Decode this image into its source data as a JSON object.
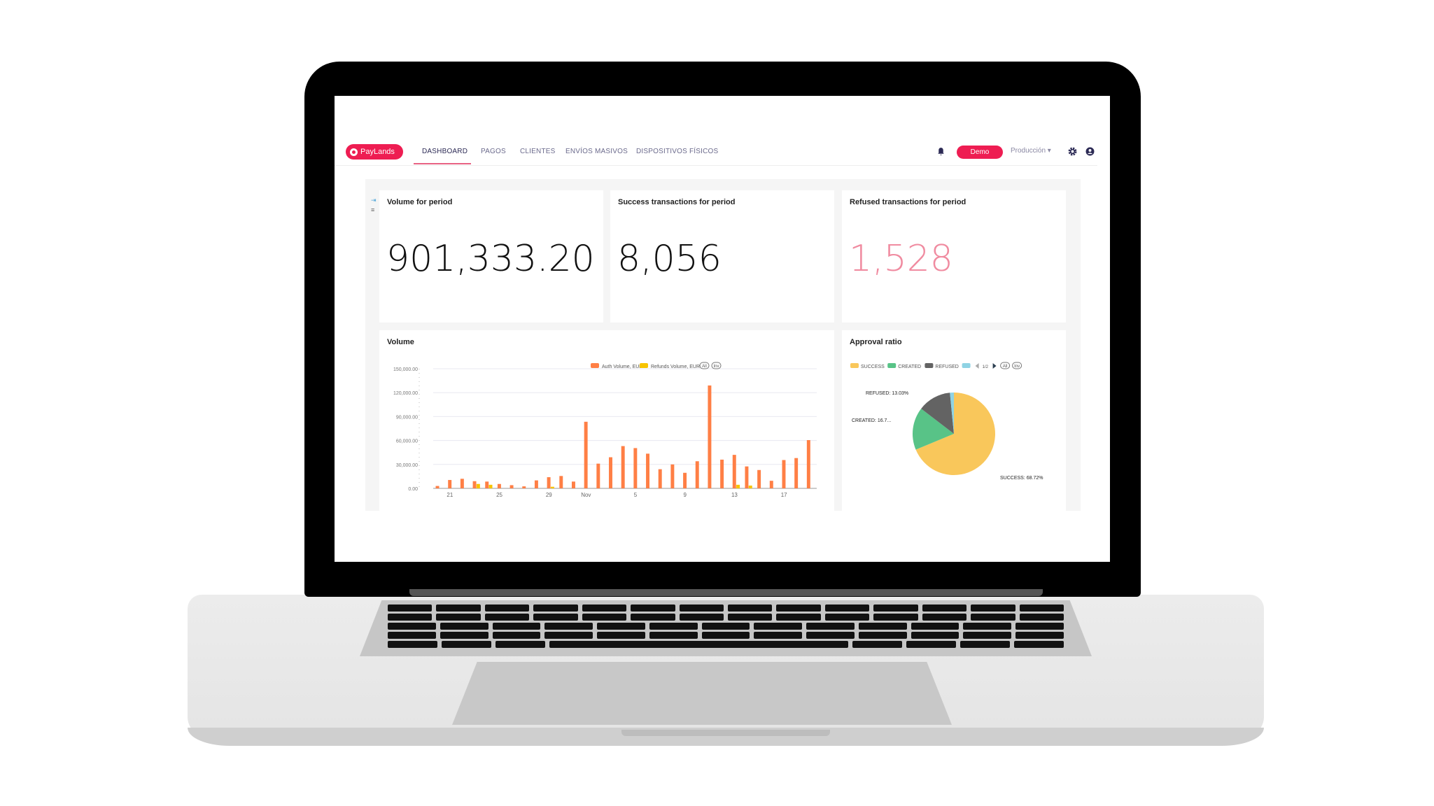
{
  "nav": {
    "logo": "PayLands",
    "tabs": [
      "DASHBOARD",
      "PAGOS",
      "CLIENTES",
      "ENVÍOS MASIVOS",
      "DISPOSITIVOS FÍSICOS"
    ],
    "active": "DASHBOARD",
    "demo": "Demo",
    "environment": "Producción ▾",
    "icons": [
      "bell-icon",
      "gear-icon",
      "user-icon"
    ]
  },
  "colors": {
    "brand": "#ee1d52",
    "auth": "#ff7f45",
    "refunds": "#f7c400",
    "success": "#f9c75b",
    "created": "#58c387",
    "refused": "#636363",
    "other": "#8fd3e4"
  },
  "kpis": [
    {
      "title": "Volume for period",
      "value": "901,333.20",
      "color": "#111111"
    },
    {
      "title": "Success transactions for period",
      "value": "8,056",
      "color": "#111111"
    },
    {
      "title": "Refused transactions for period",
      "value": "1,528",
      "color": "#f08ba0"
    }
  ],
  "chart_data": [
    {
      "type": "bar",
      "title": "Volume",
      "legend": [
        "Auth Volume, EUR",
        "Refunds Volume, EUR"
      ],
      "legend_buttons": [
        "All",
        "Inv"
      ],
      "legend_placement": "top-right",
      "ylim": [
        0,
        150000
      ],
      "yticks": [
        "0.00",
        "30,000.00",
        "60,000.00",
        "90,000.00",
        "120,000.00",
        "150,000.00"
      ],
      "xtick_labels": {
        "1": "21",
        "5": "25",
        "9": "29",
        "12": "Nov",
        "16": "5",
        "20": "9",
        "24": "13",
        "28": "17"
      },
      "x": [
        "Oct 20",
        "Oct 21",
        "Oct 22",
        "Oct 23",
        "Oct 24",
        "Oct 25",
        "Oct 26",
        "Oct 27",
        "Oct 28",
        "Oct 29",
        "Oct 30",
        "Oct 31",
        "Nov 1",
        "Nov 2",
        "Nov 3",
        "Nov 4",
        "Nov 5",
        "Nov 6",
        "Nov 7",
        "Nov 8",
        "Nov 9",
        "Nov 10",
        "Nov 11",
        "Nov 12",
        "Nov 13",
        "Nov 14",
        "Nov 15",
        "Nov 16",
        "Nov 17",
        "Nov 18",
        "Nov 19"
      ],
      "series": [
        {
          "name": "Auth Volume, EUR",
          "values": [
            3000,
            10500,
            12000,
            9000,
            8500,
            5500,
            4000,
            2500,
            10000,
            14000,
            15500,
            8500,
            83500,
            31000,
            39000,
            53000,
            50500,
            43500,
            24000,
            30000,
            19500,
            34000,
            129000,
            36000,
            42000,
            27500,
            23000,
            9500,
            35500,
            38000,
            60500
          ]
        },
        {
          "name": "Refunds Volume, EUR",
          "values": [
            0,
            0,
            0,
            5500,
            4500,
            0,
            0,
            0,
            0,
            2000,
            0,
            0,
            0,
            0,
            0,
            0,
            0,
            0,
            0,
            0,
            0,
            0,
            0,
            0,
            4500,
            3500,
            0,
            0,
            0,
            0,
            0
          ]
        }
      ]
    },
    {
      "type": "pie",
      "title": "Approval ratio",
      "legend": [
        "SUCCESS",
        "CREATED",
        "REFUSED",
        ""
      ],
      "legend_pager": "1/2",
      "legend_buttons": [
        "All",
        "Inv"
      ],
      "slices": [
        {
          "label": "SUCCESS",
          "value": 68.72,
          "text": "SUCCESS: 68.72%"
        },
        {
          "label": "CREATED",
          "value": 16.7,
          "text": "CREATED: 16.7..."
        },
        {
          "label": "REFUSED",
          "value": 13.03,
          "text": "REFUSED: 13.03%"
        },
        {
          "label": "",
          "value": 1.55,
          "text": ""
        }
      ]
    }
  ]
}
